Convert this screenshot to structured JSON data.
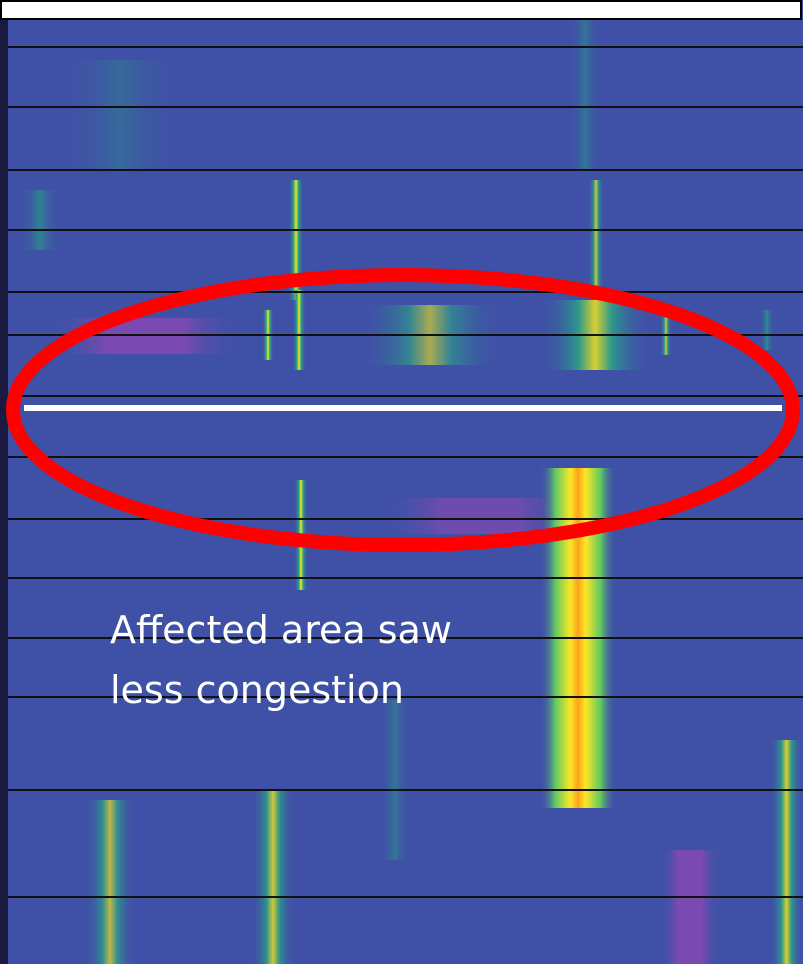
{
  "annotation": {
    "lines": [
      "Affected area saw",
      "less congestion"
    ]
  }
}
